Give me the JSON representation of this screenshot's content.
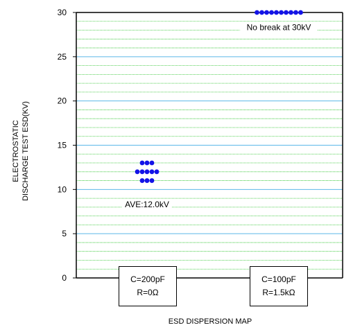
{
  "chart_data": {
    "type": "scatter",
    "title": "",
    "xlabel": "ESD DISPERSION MAP",
    "ylabel_lines": [
      "ELECTROSTATIC",
      "DISCHARGE TEST ESD(KV)"
    ],
    "ylim": [
      0,
      30
    ],
    "yticks": [
      0,
      5,
      10,
      15,
      20,
      25,
      30
    ],
    "minor_grid_step": 1,
    "major_grid_step": 5,
    "categories": [
      {
        "lines": [
          "C=200pF",
          "R=0Ω"
        ]
      },
      {
        "lines": [
          "C=100pF",
          "R=1.5kΩ"
        ]
      }
    ],
    "series": [
      {
        "category_index": 0,
        "rows": [
          {
            "y": 13,
            "count": 3
          },
          {
            "y": 12,
            "count": 5
          },
          {
            "y": 11,
            "count": 3
          }
        ]
      },
      {
        "category_index": 1,
        "rows": [
          {
            "y": 30,
            "count": 10
          }
        ]
      }
    ],
    "annotations": [
      {
        "text": "AVE:12.0kV",
        "category_index": 0,
        "y": 8.3
      },
      {
        "text": "No break at 30kV",
        "category_index": 1,
        "y": 28.3
      }
    ]
  },
  "colors": {
    "minor_grid": "#22c222",
    "major_grid": "#5bb8e8",
    "dot": "#1313e8",
    "axis": "#000000"
  }
}
